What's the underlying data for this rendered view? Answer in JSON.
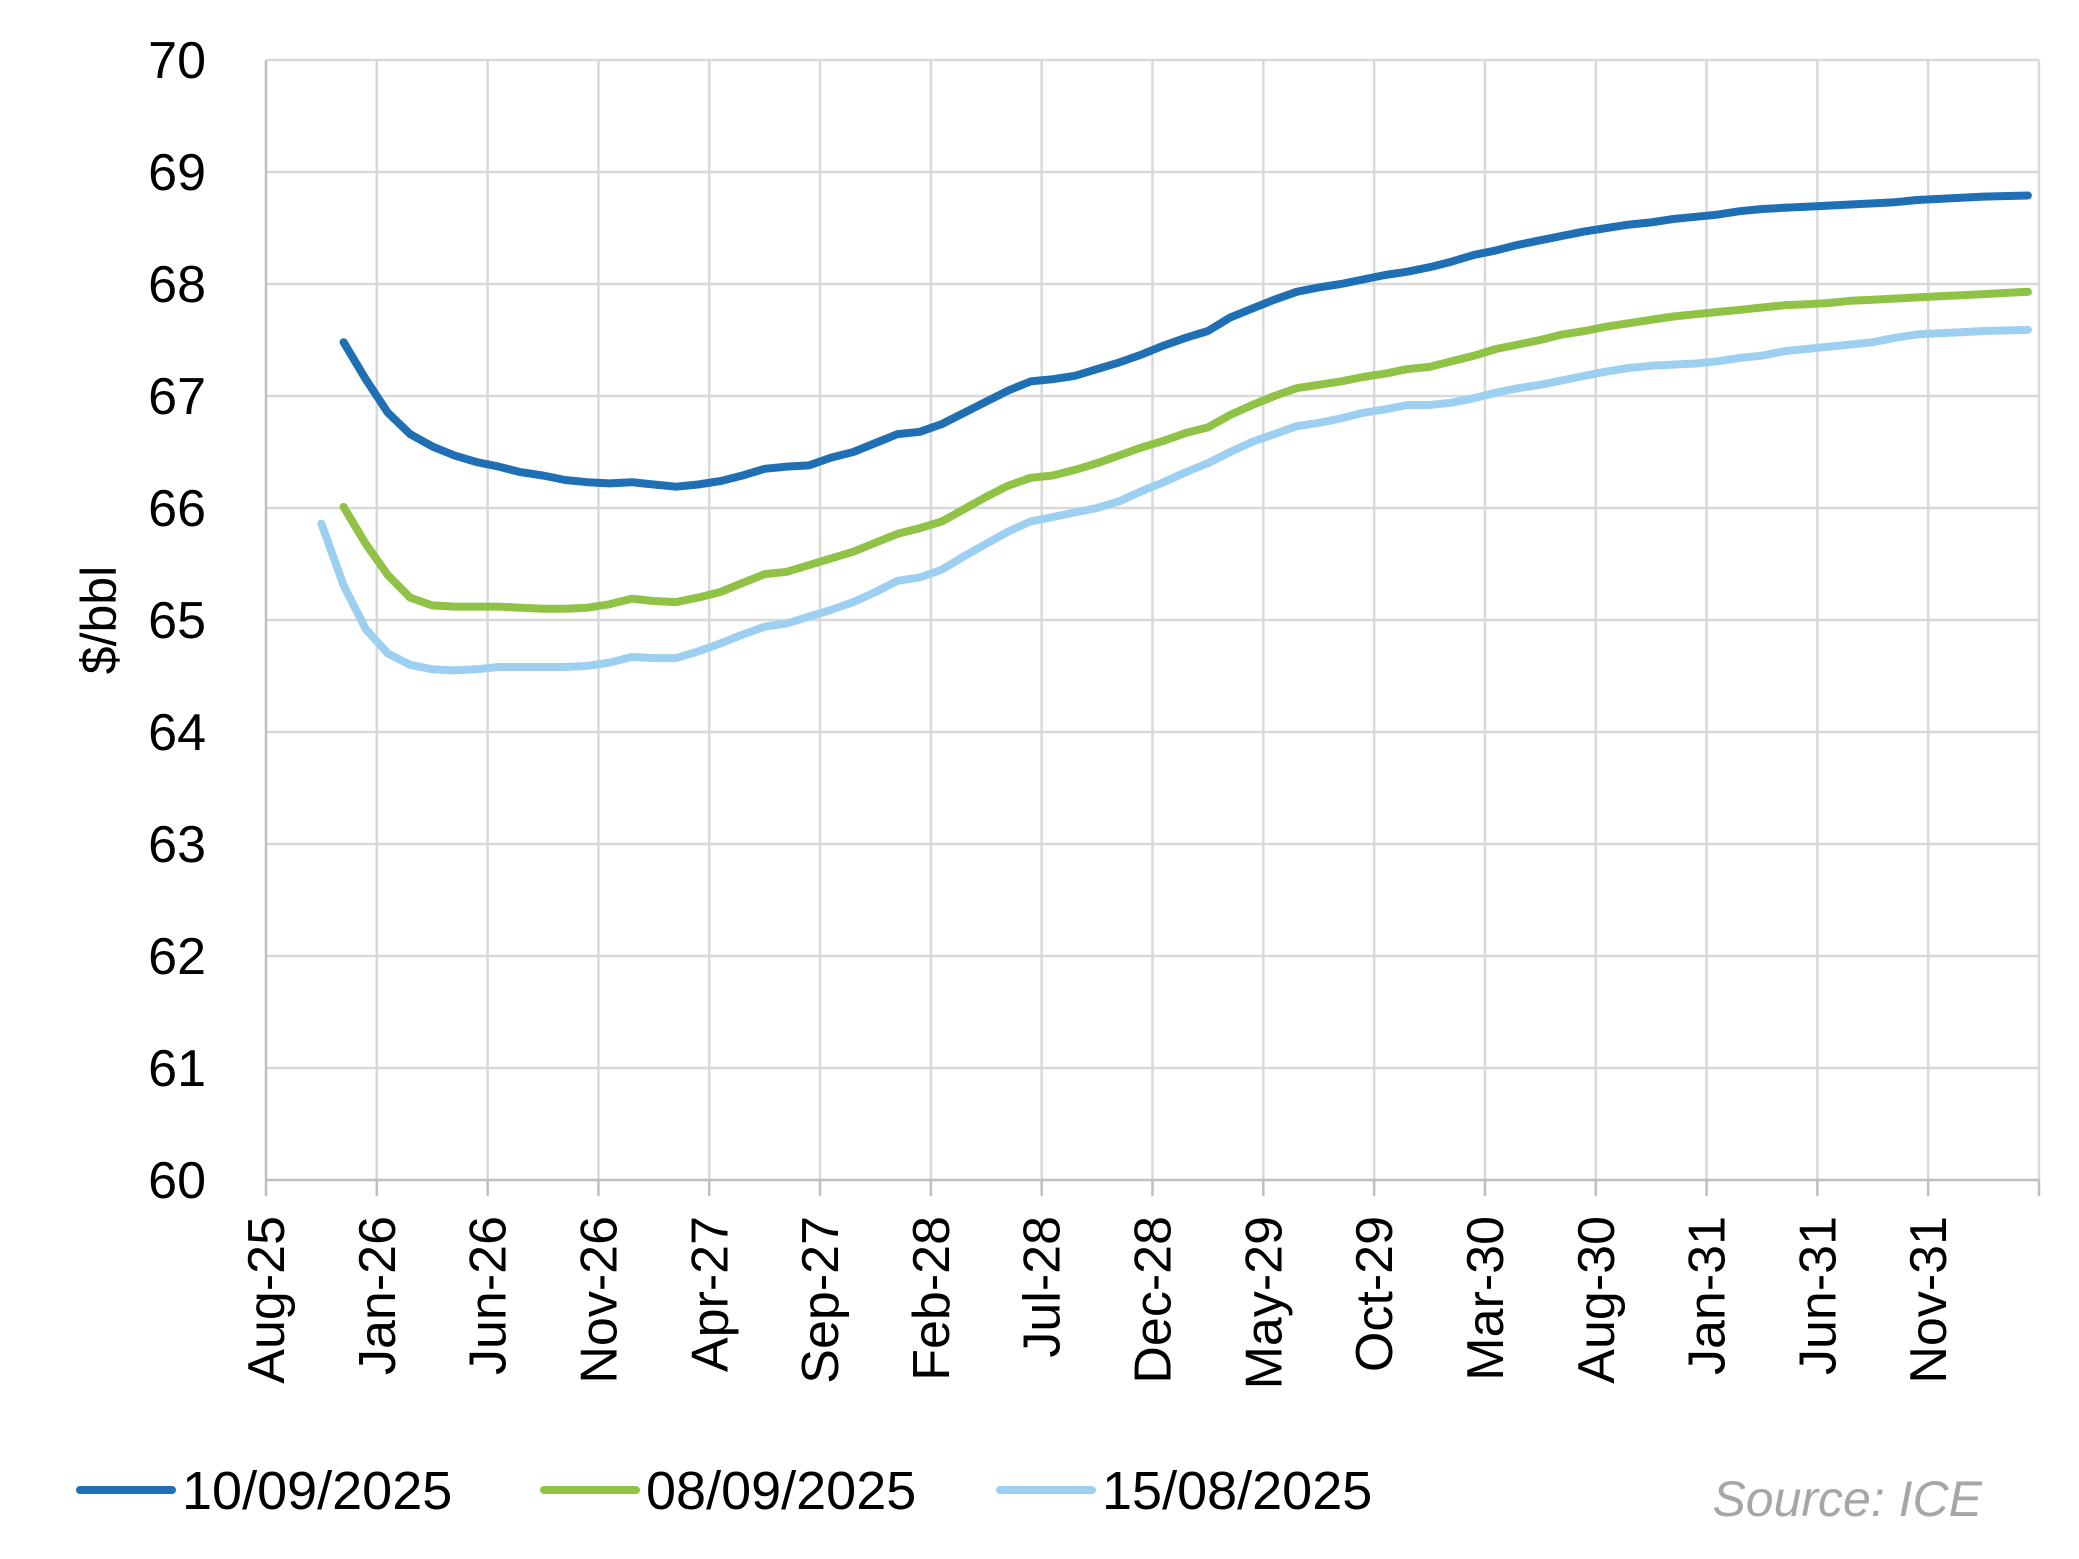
{
  "chart_data": {
    "type": "line",
    "title": "",
    "xlabel": "",
    "ylabel": "$/bbl",
    "ylim": [
      60,
      70
    ],
    "yticks": [
      60,
      61,
      62,
      63,
      64,
      65,
      66,
      67,
      68,
      69,
      70
    ],
    "x_tick_labels": [
      "Aug-25",
      "Jan-26",
      "Jun-26",
      "Nov-26",
      "Apr-27",
      "Sep-27",
      "Feb-28",
      "Jul-28",
      "Dec-28",
      "May-29",
      "Oct-29",
      "Mar-30",
      "Aug-30",
      "Jan-31",
      "Jun-31",
      "Nov-31"
    ],
    "x_unit": "months since Aug-25",
    "xlim": [
      0,
      80
    ],
    "grid": true,
    "legend_position": "bottom-left",
    "source": "Source: ICE",
    "series": [
      {
        "name": "10/09/2025",
        "color": "#1f6fb4",
        "points": [
          [
            3.5,
            67.48
          ],
          [
            4.5,
            67.15
          ],
          [
            5.5,
            66.85
          ],
          [
            6.5,
            66.66
          ],
          [
            7.5,
            66.55
          ],
          [
            8.5,
            66.47
          ],
          [
            9.5,
            66.41
          ],
          [
            10.5,
            66.37
          ],
          [
            11.5,
            66.32
          ],
          [
            12.5,
            66.29
          ],
          [
            13.5,
            66.25
          ],
          [
            14.5,
            66.23
          ],
          [
            15.5,
            66.22
          ],
          [
            16.5,
            66.23
          ],
          [
            17.5,
            66.21
          ],
          [
            18.5,
            66.19
          ],
          [
            19.5,
            66.21
          ],
          [
            20.5,
            66.24
          ],
          [
            21.5,
            66.29
          ],
          [
            22.5,
            66.35
          ],
          [
            23.5,
            66.37
          ],
          [
            24.5,
            66.38
          ],
          [
            25.5,
            66.45
          ],
          [
            26.5,
            66.5
          ],
          [
            27.5,
            66.58
          ],
          [
            28.5,
            66.66
          ],
          [
            29.5,
            66.68
          ],
          [
            30.5,
            66.75
          ],
          [
            31.5,
            66.85
          ],
          [
            32.5,
            66.95
          ],
          [
            33.5,
            67.05
          ],
          [
            34.5,
            67.13
          ],
          [
            35.5,
            67.15
          ],
          [
            36.5,
            67.18
          ],
          [
            37.5,
            67.24
          ],
          [
            38.5,
            67.3
          ],
          [
            39.5,
            67.37
          ],
          [
            40.5,
            67.45
          ],
          [
            41.5,
            67.52
          ],
          [
            42.5,
            67.58
          ],
          [
            43.5,
            67.7
          ],
          [
            44.5,
            67.78
          ],
          [
            45.5,
            67.86
          ],
          [
            46.5,
            67.93
          ],
          [
            47.5,
            67.97
          ],
          [
            48.5,
            68.0
          ],
          [
            49.5,
            68.04
          ],
          [
            50.5,
            68.08
          ],
          [
            51.5,
            68.11
          ],
          [
            52.5,
            68.15
          ],
          [
            53.5,
            68.2
          ],
          [
            54.5,
            68.26
          ],
          [
            55.5,
            68.3
          ],
          [
            56.5,
            68.35
          ],
          [
            57.5,
            68.39
          ],
          [
            58.5,
            68.43
          ],
          [
            59.5,
            68.47
          ],
          [
            60.5,
            68.5
          ],
          [
            61.5,
            68.53
          ],
          [
            62.5,
            68.55
          ],
          [
            63.5,
            68.58
          ],
          [
            64.5,
            68.6
          ],
          [
            65.5,
            68.62
          ],
          [
            66.5,
            68.65
          ],
          [
            67.5,
            68.67
          ],
          [
            68.5,
            68.68
          ],
          [
            69.5,
            68.69
          ],
          [
            70.5,
            68.7
          ],
          [
            71.5,
            68.71
          ],
          [
            72.5,
            68.72
          ],
          [
            73.5,
            68.73
          ],
          [
            74.5,
            68.75
          ],
          [
            75.5,
            68.76
          ],
          [
            76.5,
            68.77
          ],
          [
            77.5,
            68.78
          ],
          [
            79.5,
            68.79
          ]
        ]
      },
      {
        "name": "08/09/2025",
        "color": "#8fc245",
        "points": [
          [
            3.5,
            66.01
          ],
          [
            4.5,
            65.68
          ],
          [
            5.5,
            65.4
          ],
          [
            6.5,
            65.2
          ],
          [
            7.5,
            65.13
          ],
          [
            8.5,
            65.12
          ],
          [
            9.5,
            65.12
          ],
          [
            10.5,
            65.12
          ],
          [
            11.5,
            65.11
          ],
          [
            12.5,
            65.1
          ],
          [
            13.5,
            65.1
          ],
          [
            14.5,
            65.11
          ],
          [
            15.5,
            65.14
          ],
          [
            16.5,
            65.19
          ],
          [
            17.5,
            65.17
          ],
          [
            18.5,
            65.16
          ],
          [
            19.5,
            65.2
          ],
          [
            20.5,
            65.25
          ],
          [
            21.5,
            65.33
          ],
          [
            22.5,
            65.41
          ],
          [
            23.5,
            65.43
          ],
          [
            24.5,
            65.49
          ],
          [
            25.5,
            65.55
          ],
          [
            26.5,
            65.61
          ],
          [
            27.5,
            65.69
          ],
          [
            28.5,
            65.77
          ],
          [
            29.5,
            65.82
          ],
          [
            30.5,
            65.88
          ],
          [
            31.5,
            65.99
          ],
          [
            32.5,
            66.1
          ],
          [
            33.5,
            66.2
          ],
          [
            34.5,
            66.27
          ],
          [
            35.5,
            66.29
          ],
          [
            36.5,
            66.34
          ],
          [
            37.5,
            66.4
          ],
          [
            38.5,
            66.47
          ],
          [
            39.5,
            66.54
          ],
          [
            40.5,
            66.6
          ],
          [
            41.5,
            66.67
          ],
          [
            42.5,
            66.72
          ],
          [
            43.5,
            66.83
          ],
          [
            44.5,
            66.92
          ],
          [
            45.5,
            67.0
          ],
          [
            46.5,
            67.07
          ],
          [
            47.5,
            67.1
          ],
          [
            48.5,
            67.13
          ],
          [
            49.5,
            67.17
          ],
          [
            50.5,
            67.2
          ],
          [
            51.5,
            67.24
          ],
          [
            52.5,
            67.26
          ],
          [
            53.5,
            67.31
          ],
          [
            54.5,
            67.36
          ],
          [
            55.5,
            67.42
          ],
          [
            56.5,
            67.46
          ],
          [
            57.5,
            67.5
          ],
          [
            58.5,
            67.55
          ],
          [
            59.5,
            67.58
          ],
          [
            60.5,
            67.62
          ],
          [
            61.5,
            67.65
          ],
          [
            62.5,
            67.68
          ],
          [
            63.5,
            67.71
          ],
          [
            64.5,
            67.73
          ],
          [
            65.5,
            67.75
          ],
          [
            66.5,
            67.77
          ],
          [
            67.5,
            67.79
          ],
          [
            68.5,
            67.81
          ],
          [
            69.5,
            67.82
          ],
          [
            70.5,
            67.83
          ],
          [
            71.5,
            67.85
          ],
          [
            72.5,
            67.86
          ],
          [
            73.5,
            67.87
          ],
          [
            74.5,
            67.88
          ],
          [
            75.5,
            67.89
          ],
          [
            76.5,
            67.9
          ],
          [
            77.5,
            67.91
          ],
          [
            79.5,
            67.93
          ]
        ]
      },
      {
        "name": "15/08/2025",
        "color": "#9dd0f0",
        "points": [
          [
            2.5,
            65.86
          ],
          [
            3.5,
            65.31
          ],
          [
            4.5,
            64.92
          ],
          [
            5.5,
            64.7
          ],
          [
            6.5,
            64.6
          ],
          [
            7.5,
            64.56
          ],
          [
            8.5,
            64.55
          ],
          [
            9.5,
            64.56
          ],
          [
            10.5,
            64.58
          ],
          [
            11.5,
            64.58
          ],
          [
            12.5,
            64.58
          ],
          [
            13.5,
            64.58
          ],
          [
            14.5,
            64.59
          ],
          [
            15.5,
            64.62
          ],
          [
            16.5,
            64.67
          ],
          [
            17.5,
            64.66
          ],
          [
            18.5,
            64.66
          ],
          [
            19.5,
            64.72
          ],
          [
            20.5,
            64.79
          ],
          [
            21.5,
            64.87
          ],
          [
            22.5,
            64.94
          ],
          [
            23.5,
            64.97
          ],
          [
            24.5,
            65.03
          ],
          [
            25.5,
            65.09
          ],
          [
            26.5,
            65.16
          ],
          [
            27.5,
            65.25
          ],
          [
            28.5,
            65.35
          ],
          [
            29.5,
            65.38
          ],
          [
            30.5,
            65.45
          ],
          [
            31.5,
            65.57
          ],
          [
            32.5,
            65.68
          ],
          [
            33.5,
            65.79
          ],
          [
            34.5,
            65.88
          ],
          [
            35.5,
            65.92
          ],
          [
            36.5,
            65.96
          ],
          [
            37.5,
            66.0
          ],
          [
            38.5,
            66.06
          ],
          [
            39.5,
            66.15
          ],
          [
            40.5,
            66.23
          ],
          [
            41.5,
            66.32
          ],
          [
            42.5,
            66.4
          ],
          [
            43.5,
            66.5
          ],
          [
            44.5,
            66.59
          ],
          [
            45.5,
            66.66
          ],
          [
            46.5,
            66.73
          ],
          [
            47.5,
            66.76
          ],
          [
            48.5,
            66.8
          ],
          [
            49.5,
            66.85
          ],
          [
            50.5,
            66.88
          ],
          [
            51.5,
            66.92
          ],
          [
            52.5,
            66.92
          ],
          [
            53.5,
            66.94
          ],
          [
            54.5,
            66.98
          ],
          [
            55.5,
            67.03
          ],
          [
            56.5,
            67.07
          ],
          [
            57.5,
            67.1
          ],
          [
            58.5,
            67.14
          ],
          [
            59.5,
            67.18
          ],
          [
            60.5,
            67.22
          ],
          [
            61.5,
            67.25
          ],
          [
            62.5,
            67.27
          ],
          [
            63.5,
            67.28
          ],
          [
            64.5,
            67.29
          ],
          [
            65.5,
            67.31
          ],
          [
            66.5,
            67.34
          ],
          [
            67.5,
            67.36
          ],
          [
            68.5,
            67.4
          ],
          [
            69.5,
            67.42
          ],
          [
            70.5,
            67.44
          ],
          [
            71.5,
            67.46
          ],
          [
            72.5,
            67.48
          ],
          [
            73.5,
            67.52
          ],
          [
            74.5,
            67.55
          ],
          [
            75.5,
            67.56
          ],
          [
            76.5,
            67.57
          ],
          [
            77.5,
            67.58
          ],
          [
            79.5,
            67.59
          ]
        ]
      }
    ]
  }
}
